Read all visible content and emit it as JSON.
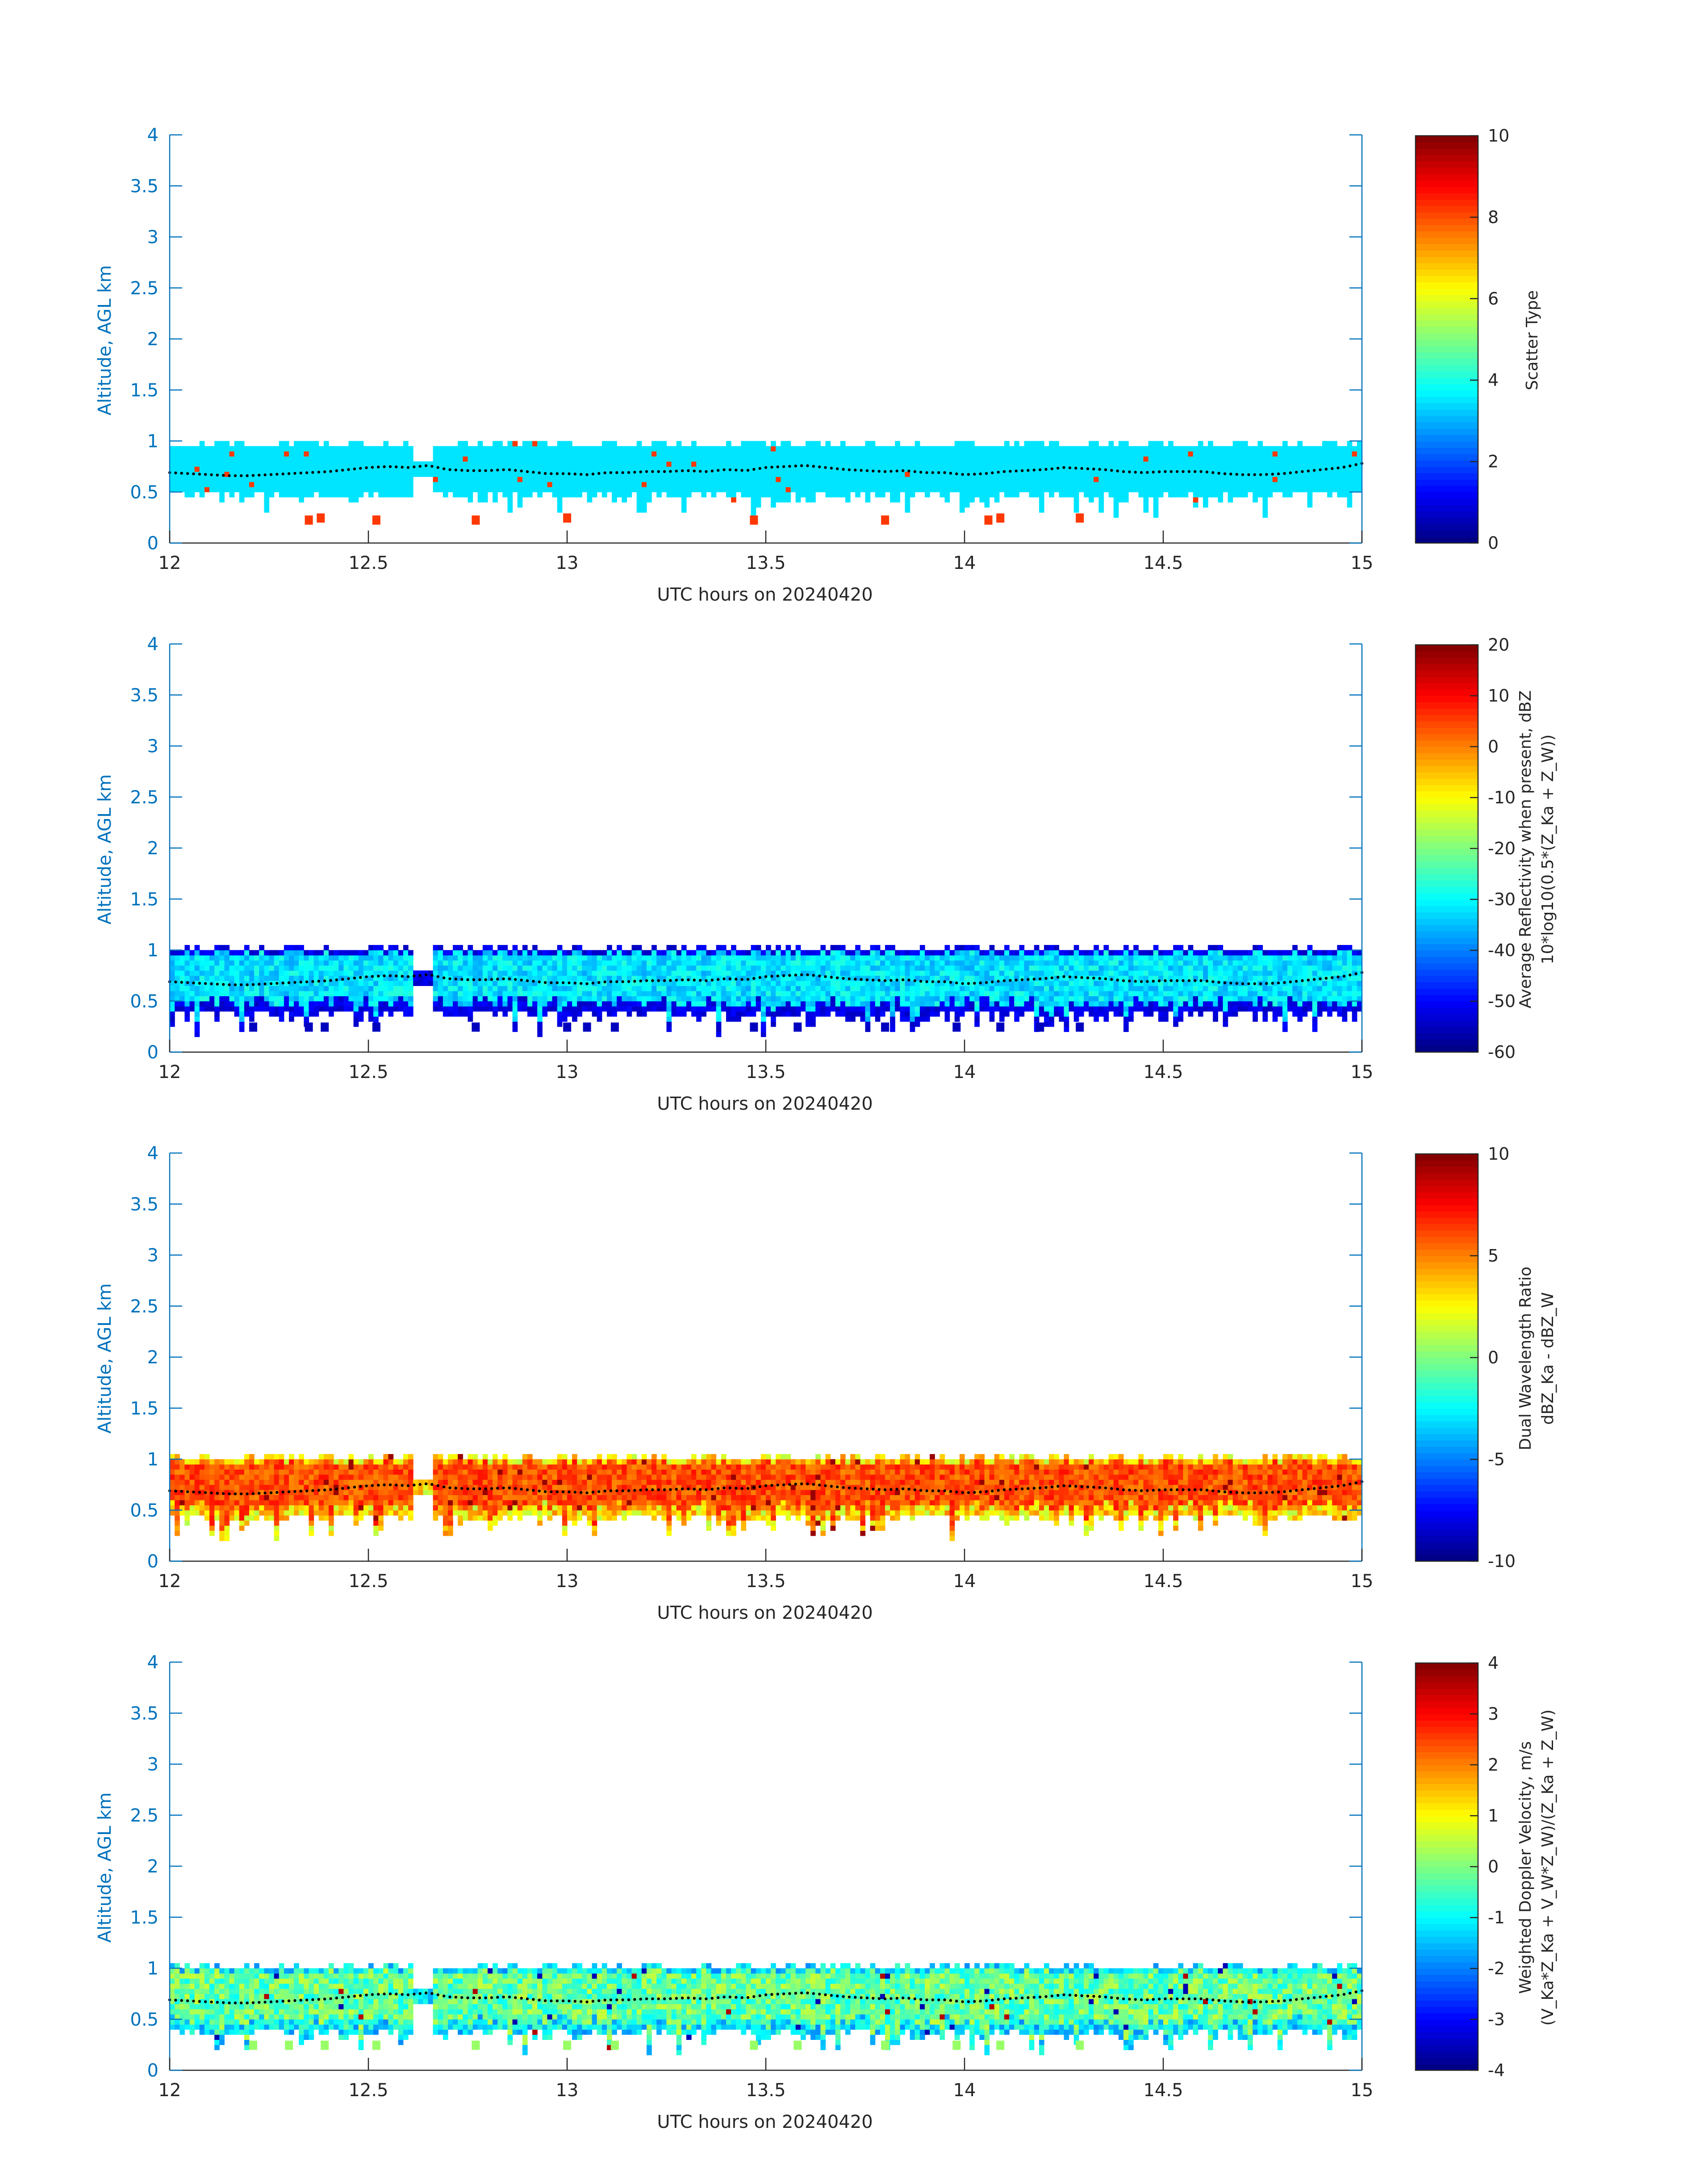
{
  "chart_data": [
    {
      "type": "heatmap",
      "xlabel": "UTC hours on 20240420",
      "ylabel": "Altitude, AGL km",
      "xlim": [
        12,
        15
      ],
      "ylim": [
        0,
        4
      ],
      "xticks": [
        12,
        12.5,
        13,
        13.5,
        14,
        14.5,
        15
      ],
      "yticks": [
        0,
        0.5,
        1,
        1.5,
        2,
        2.5,
        3,
        3.5,
        4
      ],
      "colorbar": {
        "label_lines": [
          "Scatter Type"
        ],
        "clim": [
          0,
          10
        ],
        "ticks": [
          0,
          2,
          4,
          6,
          8,
          10
        ]
      },
      "field": {
        "layer_bottom_km": 0.55,
        "layer_top_km": 0.95,
        "dominant_value": 3.5,
        "sparse_value": 8.2,
        "low_blobs": [
          [
            12.34,
            0.22
          ],
          [
            12.37,
            0.24
          ],
          [
            12.51,
            0.22
          ],
          [
            12.76,
            0.22
          ],
          [
            12.99,
            0.24
          ],
          [
            13.46,
            0.22
          ],
          [
            13.79,
            0.22
          ],
          [
            14.05,
            0.22
          ],
          [
            14.08,
            0.24
          ],
          [
            14.28,
            0.24
          ]
        ]
      }
    },
    {
      "type": "heatmap",
      "xlabel": "UTC hours on 20240420",
      "ylabel": "Altitude, AGL km",
      "xlim": [
        12,
        15
      ],
      "ylim": [
        0,
        4
      ],
      "xticks": [
        12,
        12.5,
        13,
        13.5,
        14,
        14.5,
        15
      ],
      "yticks": [
        0,
        0.5,
        1,
        1.5,
        2,
        2.5,
        3,
        3.5,
        4
      ],
      "colorbar": {
        "label_lines": [
          "Average Reflectivity when present, dBZ",
          "10*log10(0.5*(Z_Ka + Z_W))"
        ],
        "clim": [
          -60,
          20
        ],
        "ticks": [
          -60,
          -50,
          -40,
          -30,
          -20,
          -10,
          0,
          10,
          20
        ]
      },
      "field": {
        "layer_bottom_km": 0.45,
        "layer_top_km": 1.0,
        "core_value": -32,
        "edge_value": -55,
        "low_blobs": [
          [
            12.2,
            0.24
          ],
          [
            12.34,
            0.24
          ],
          [
            12.38,
            0.24
          ],
          [
            12.51,
            0.24
          ],
          [
            12.76,
            0.24
          ],
          [
            12.99,
            0.24
          ],
          [
            13.04,
            0.24
          ],
          [
            13.11,
            0.24
          ],
          [
            13.46,
            0.24
          ],
          [
            13.57,
            0.24
          ],
          [
            13.79,
            0.24
          ],
          [
            13.97,
            0.24
          ],
          [
            14.08,
            0.24
          ],
          [
            14.18,
            0.24
          ],
          [
            14.28,
            0.24
          ]
        ]
      }
    },
    {
      "type": "heatmap",
      "xlabel": "UTC hours on 20240420",
      "ylabel": "Altitude, AGL km",
      "xlim": [
        12,
        15
      ],
      "ylim": [
        0,
        4
      ],
      "xticks": [
        12,
        12.5,
        13,
        13.5,
        14,
        14.5,
        15
      ],
      "yticks": [
        0,
        0.5,
        1,
        1.5,
        2,
        2.5,
        3,
        3.5,
        4
      ],
      "colorbar": {
        "label_lines": [
          "Dual Wavelength Ratio",
          "dBZ_Ka - dBZ_W"
        ],
        "clim": [
          -10,
          10
        ],
        "ticks": [
          -10,
          -5,
          0,
          5,
          10
        ]
      },
      "field": {
        "layer_bottom_km": 0.5,
        "layer_top_km": 1.0,
        "core_value": 6,
        "edge_value": 3
      }
    },
    {
      "type": "heatmap",
      "xlabel": "UTC hours on 20240420",
      "ylabel": "Altitude, AGL km",
      "xlim": [
        12,
        15
      ],
      "ylim": [
        0,
        4
      ],
      "xticks": [
        12,
        12.5,
        13,
        13.5,
        14,
        14.5,
        15
      ],
      "yticks": [
        0,
        0.5,
        1,
        1.5,
        2,
        2.5,
        3,
        3.5,
        4
      ],
      "colorbar": {
        "label_lines": [
          "Weighted Doppler Velocity, m/s",
          "(V_Ka*Z_Ka + V_W*Z_W)/(Z_Ka + Z_W)"
        ],
        "clim": [
          -4,
          4
        ],
        "ticks": [
          -4,
          -3,
          -2,
          -1,
          0,
          1,
          2,
          3,
          4
        ]
      },
      "field": {
        "layer_bottom_km": 0.45,
        "layer_top_km": 1.0,
        "core_value": -0.2,
        "edge_value": -1.5,
        "low_blobs": [
          [
            12.2,
            0.24
          ],
          [
            12.29,
            0.24
          ],
          [
            12.38,
            0.24
          ],
          [
            12.51,
            0.24
          ],
          [
            12.76,
            0.24
          ],
          [
            12.99,
            0.24
          ],
          [
            13.11,
            0.24
          ],
          [
            13.46,
            0.24
          ],
          [
            13.57,
            0.24
          ],
          [
            13.79,
            0.24
          ],
          [
            13.97,
            0.24
          ],
          [
            14.08,
            0.24
          ],
          [
            14.28,
            0.24
          ]
        ]
      }
    }
  ],
  "cloud_top_series": {
    "x": [
      12.0,
      12.05,
      12.1,
      12.15,
      12.2,
      12.25,
      12.3,
      12.35,
      12.4,
      12.45,
      12.5,
      12.55,
      12.6,
      12.65,
      12.7,
      12.75,
      12.8,
      12.85,
      12.9,
      12.95,
      13.0,
      13.05,
      13.1,
      13.15,
      13.2,
      13.25,
      13.3,
      13.35,
      13.4,
      13.45,
      13.5,
      13.55,
      13.6,
      13.65,
      13.7,
      13.75,
      13.8,
      13.85,
      13.9,
      13.95,
      14.0,
      14.05,
      14.1,
      14.15,
      14.2,
      14.25,
      14.3,
      14.35,
      14.4,
      14.45,
      14.5,
      14.55,
      14.6,
      14.65,
      14.7,
      14.75,
      14.8,
      14.85,
      14.9,
      14.95,
      15.0
    ],
    "y": [
      0.69,
      0.68,
      0.67,
      0.66,
      0.66,
      0.67,
      0.68,
      0.69,
      0.7,
      0.72,
      0.74,
      0.75,
      0.74,
      0.76,
      0.72,
      0.71,
      0.71,
      0.72,
      0.7,
      0.68,
      0.68,
      0.67,
      0.69,
      0.69,
      0.7,
      0.7,
      0.71,
      0.7,
      0.72,
      0.71,
      0.74,
      0.75,
      0.76,
      0.74,
      0.72,
      0.71,
      0.7,
      0.71,
      0.69,
      0.69,
      0.67,
      0.68,
      0.7,
      0.71,
      0.72,
      0.74,
      0.73,
      0.72,
      0.7,
      0.69,
      0.7,
      0.7,
      0.7,
      0.68,
      0.67,
      0.67,
      0.68,
      0.7,
      0.72,
      0.74,
      0.78
    ]
  }
}
